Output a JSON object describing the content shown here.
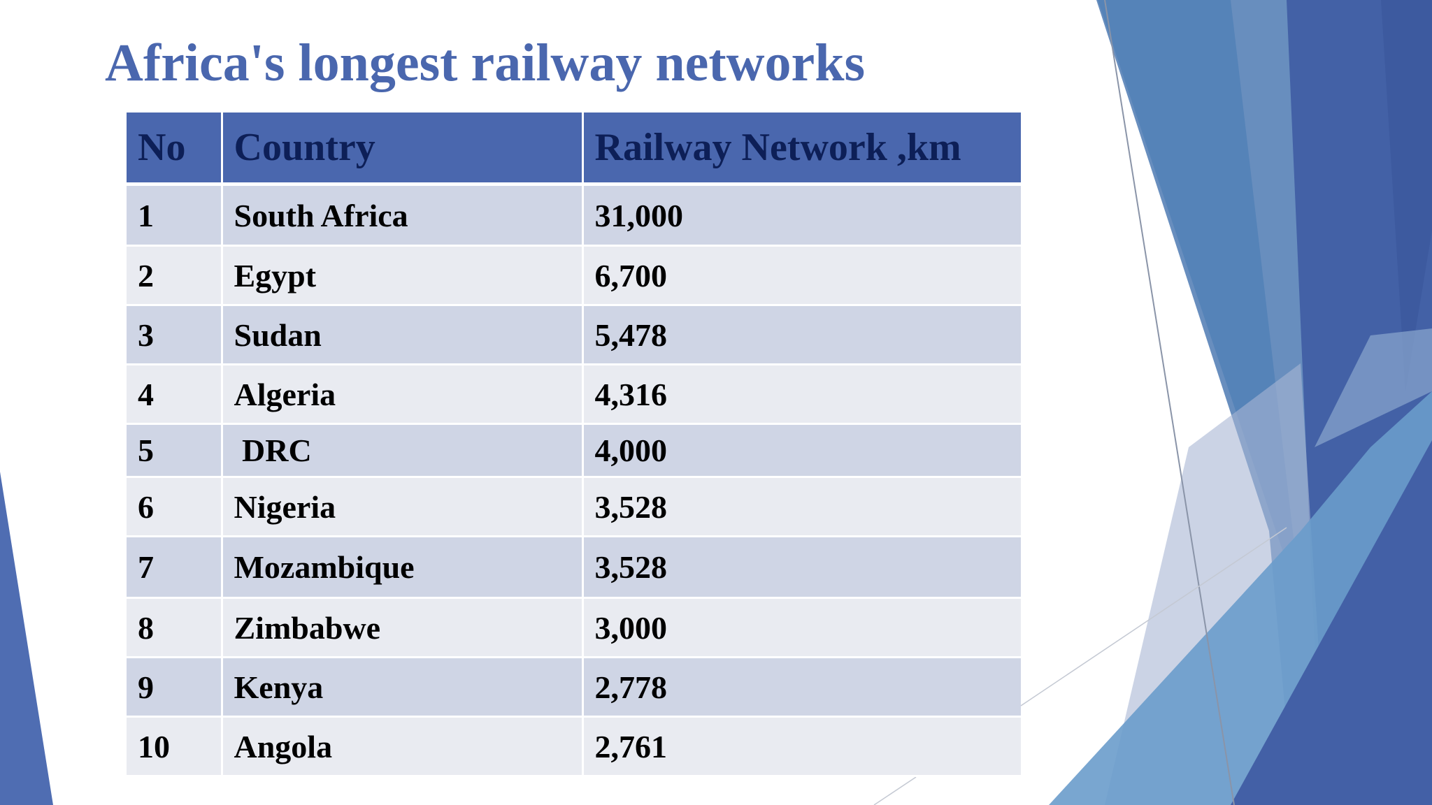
{
  "slide": {
    "title": "Africa's longest railway networks"
  },
  "table": {
    "headers": [
      "No",
      "Country",
      "Railway Network ,km"
    ],
    "rows": [
      [
        "1",
        "South Africa",
        "31,000"
      ],
      [
        "2",
        "Egypt",
        "6,700"
      ],
      [
        "3",
        "Sudan",
        "5,478"
      ],
      [
        "4",
        "Algeria",
        "4,316"
      ],
      [
        "5",
        " DRC",
        "4,000"
      ],
      [
        "6",
        "Nigeria",
        "3,528"
      ],
      [
        "7",
        "Mozambique",
        "3,528"
      ],
      [
        "8",
        "Zimbabwe",
        "3,000"
      ],
      [
        "9",
        "Kenya",
        "2,778"
      ],
      [
        "10",
        "Angola",
        "2,761"
      ]
    ]
  },
  "colors": {
    "title": "#4a67ae",
    "header_bg": "#4a67ae",
    "header_text": "#0d1f57",
    "row_band_dark": "#cfd5e5",
    "row_band_light": "#e9ebf1",
    "facet_blue": "#4665a8",
    "facet_teal": "#3f80b8"
  }
}
